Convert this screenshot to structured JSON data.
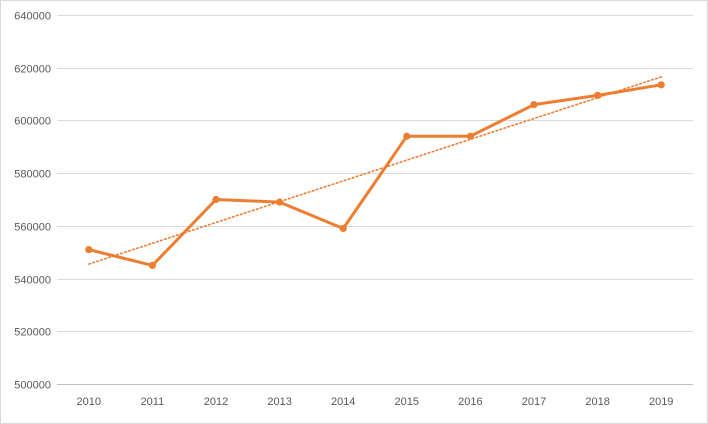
{
  "chart_data": {
    "type": "line",
    "title": "",
    "xlabel": "",
    "ylabel": "",
    "categories": [
      "2010",
      "2011",
      "2012",
      "2013",
      "2014",
      "2015",
      "2016",
      "2017",
      "2018",
      "2019"
    ],
    "series": [
      {
        "values": [
          551000,
          545000,
          570000,
          569000,
          559000,
          594000,
          594000,
          606000,
          609500,
          613500
        ],
        "color": "#ED7D31",
        "marker": "circle"
      }
    ],
    "trendline": {
      "kind": "linear",
      "style": "dotted",
      "color": "#ED7D31",
      "start": 545500,
      "end": 616500
    },
    "ylim": [
      500000,
      640000
    ],
    "yticks": [
      "500000",
      "520000",
      "540000",
      "560000",
      "580000",
      "600000",
      "620000",
      "640000"
    ],
    "grid": true,
    "legend": "none"
  }
}
